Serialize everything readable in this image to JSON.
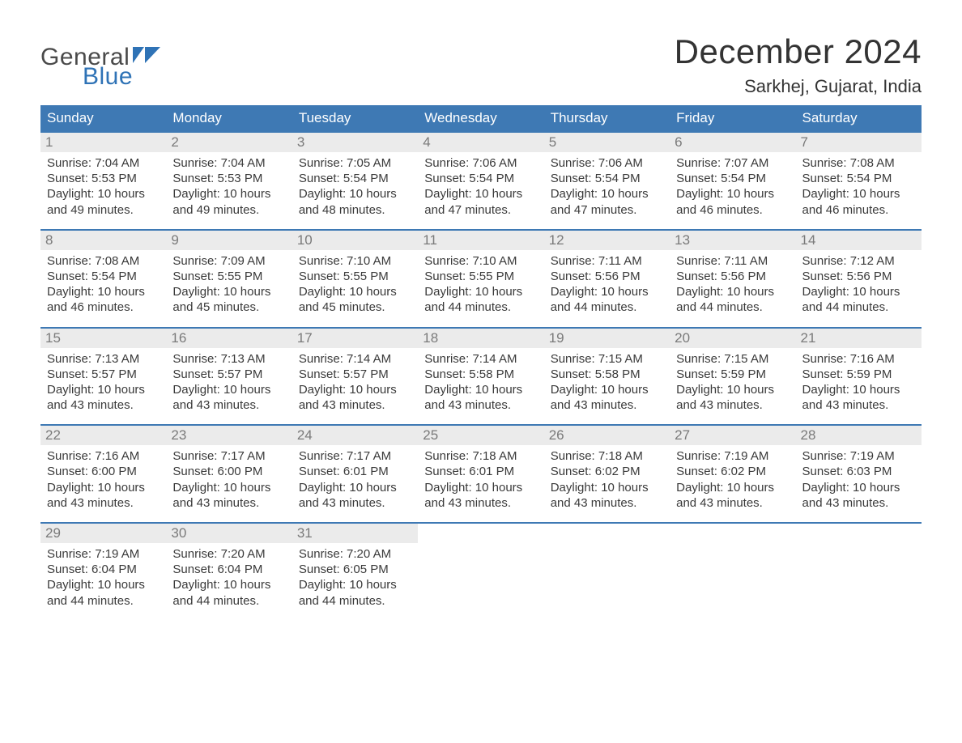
{
  "colors": {
    "header_bg": "#3e79b4",
    "week_divider": "#3e79b4",
    "daynum_bg": "#ebebeb",
    "daynum_color": "#7a7a7a",
    "text_color": "#3a3a3a",
    "logo_blue": "#2f73b6",
    "logo_gray": "#4a4a4a",
    "page_bg": "#ffffff"
  },
  "logo": {
    "word_top": "General",
    "word_bottom": "Blue"
  },
  "title": "December 2024",
  "location": "Sarkhej, Gujarat, India",
  "weekdays": [
    "Sunday",
    "Monday",
    "Tuesday",
    "Wednesday",
    "Thursday",
    "Friday",
    "Saturday"
  ],
  "labels": {
    "sunrise": "Sunrise: ",
    "sunset": "Sunset: ",
    "daylight_prefix": "Daylight: ",
    "and_minutes_suffix": " minutes."
  },
  "weeks": [
    [
      {
        "n": "1",
        "sunrise": "7:04 AM",
        "sunset": "5:53 PM",
        "dl_hours": "10 hours",
        "dl_min": "49"
      },
      {
        "n": "2",
        "sunrise": "7:04 AM",
        "sunset": "5:53 PM",
        "dl_hours": "10 hours",
        "dl_min": "49"
      },
      {
        "n": "3",
        "sunrise": "7:05 AM",
        "sunset": "5:54 PM",
        "dl_hours": "10 hours",
        "dl_min": "48"
      },
      {
        "n": "4",
        "sunrise": "7:06 AM",
        "sunset": "5:54 PM",
        "dl_hours": "10 hours",
        "dl_min": "47"
      },
      {
        "n": "5",
        "sunrise": "7:06 AM",
        "sunset": "5:54 PM",
        "dl_hours": "10 hours",
        "dl_min": "47"
      },
      {
        "n": "6",
        "sunrise": "7:07 AM",
        "sunset": "5:54 PM",
        "dl_hours": "10 hours",
        "dl_min": "46"
      },
      {
        "n": "7",
        "sunrise": "7:08 AM",
        "sunset": "5:54 PM",
        "dl_hours": "10 hours",
        "dl_min": "46"
      }
    ],
    [
      {
        "n": "8",
        "sunrise": "7:08 AM",
        "sunset": "5:54 PM",
        "dl_hours": "10 hours",
        "dl_min": "46"
      },
      {
        "n": "9",
        "sunrise": "7:09 AM",
        "sunset": "5:55 PM",
        "dl_hours": "10 hours",
        "dl_min": "45"
      },
      {
        "n": "10",
        "sunrise": "7:10 AM",
        "sunset": "5:55 PM",
        "dl_hours": "10 hours",
        "dl_min": "45"
      },
      {
        "n": "11",
        "sunrise": "7:10 AM",
        "sunset": "5:55 PM",
        "dl_hours": "10 hours",
        "dl_min": "44"
      },
      {
        "n": "12",
        "sunrise": "7:11 AM",
        "sunset": "5:56 PM",
        "dl_hours": "10 hours",
        "dl_min": "44"
      },
      {
        "n": "13",
        "sunrise": "7:11 AM",
        "sunset": "5:56 PM",
        "dl_hours": "10 hours",
        "dl_min": "44"
      },
      {
        "n": "14",
        "sunrise": "7:12 AM",
        "sunset": "5:56 PM",
        "dl_hours": "10 hours",
        "dl_min": "44"
      }
    ],
    [
      {
        "n": "15",
        "sunrise": "7:13 AM",
        "sunset": "5:57 PM",
        "dl_hours": "10 hours",
        "dl_min": "43"
      },
      {
        "n": "16",
        "sunrise": "7:13 AM",
        "sunset": "5:57 PM",
        "dl_hours": "10 hours",
        "dl_min": "43"
      },
      {
        "n": "17",
        "sunrise": "7:14 AM",
        "sunset": "5:57 PM",
        "dl_hours": "10 hours",
        "dl_min": "43"
      },
      {
        "n": "18",
        "sunrise": "7:14 AM",
        "sunset": "5:58 PM",
        "dl_hours": "10 hours",
        "dl_min": "43"
      },
      {
        "n": "19",
        "sunrise": "7:15 AM",
        "sunset": "5:58 PM",
        "dl_hours": "10 hours",
        "dl_min": "43"
      },
      {
        "n": "20",
        "sunrise": "7:15 AM",
        "sunset": "5:59 PM",
        "dl_hours": "10 hours",
        "dl_min": "43"
      },
      {
        "n": "21",
        "sunrise": "7:16 AM",
        "sunset": "5:59 PM",
        "dl_hours": "10 hours",
        "dl_min": "43"
      }
    ],
    [
      {
        "n": "22",
        "sunrise": "7:16 AM",
        "sunset": "6:00 PM",
        "dl_hours": "10 hours",
        "dl_min": "43"
      },
      {
        "n": "23",
        "sunrise": "7:17 AM",
        "sunset": "6:00 PM",
        "dl_hours": "10 hours",
        "dl_min": "43"
      },
      {
        "n": "24",
        "sunrise": "7:17 AM",
        "sunset": "6:01 PM",
        "dl_hours": "10 hours",
        "dl_min": "43"
      },
      {
        "n": "25",
        "sunrise": "7:18 AM",
        "sunset": "6:01 PM",
        "dl_hours": "10 hours",
        "dl_min": "43"
      },
      {
        "n": "26",
        "sunrise": "7:18 AM",
        "sunset": "6:02 PM",
        "dl_hours": "10 hours",
        "dl_min": "43"
      },
      {
        "n": "27",
        "sunrise": "7:19 AM",
        "sunset": "6:02 PM",
        "dl_hours": "10 hours",
        "dl_min": "43"
      },
      {
        "n": "28",
        "sunrise": "7:19 AM",
        "sunset": "6:03 PM",
        "dl_hours": "10 hours",
        "dl_min": "43"
      }
    ],
    [
      {
        "n": "29",
        "sunrise": "7:19 AM",
        "sunset": "6:04 PM",
        "dl_hours": "10 hours",
        "dl_min": "44"
      },
      {
        "n": "30",
        "sunrise": "7:20 AM",
        "sunset": "6:04 PM",
        "dl_hours": "10 hours",
        "dl_min": "44"
      },
      {
        "n": "31",
        "sunrise": "7:20 AM",
        "sunset": "6:05 PM",
        "dl_hours": "10 hours",
        "dl_min": "44"
      },
      null,
      null,
      null,
      null
    ]
  ]
}
